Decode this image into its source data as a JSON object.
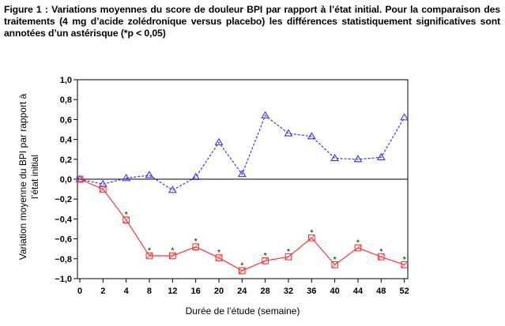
{
  "caption": "Figure 1 : Variations moyennes du score de douleur BPI par rapport à l’état initial. Pour la comparaison des traitements (4 mg d’acide zolédronique versus placebo) les différences statistiquement significatives sont annotées d’un astérisque (*p < 0,05)",
  "chart_data": {
    "type": "line",
    "xlabel": "Durée de l’étude (semaine)",
    "ylabel": "Variation moyenne du BPI par rapport à l’état initial",
    "categories": [
      "0",
      "2",
      "4",
      "8",
      "12",
      "16",
      "20",
      "24",
      "28",
      "32",
      "36",
      "40",
      "44",
      "48",
      "52"
    ],
    "ylim": [
      -1.0,
      1.0
    ],
    "ytick_labels": [
      "1,0",
      "0,8",
      "0,6",
      "0,4",
      "0,2",
      "0,0",
      "−0,2",
      "−0,4",
      "−0,6",
      "−0,8",
      "−1,0"
    ],
    "ytick_values": [
      1.0,
      0.8,
      0.6,
      0.4,
      0.2,
      0.0,
      -0.2,
      -0.4,
      -0.6,
      -0.8,
      -1.0
    ],
    "reference_line": 0.0,
    "series": [
      {
        "marker": "triangle",
        "color": "#3333ff",
        "line_style": "dashed",
        "values": [
          0.0,
          -0.05,
          0.01,
          0.04,
          -0.11,
          0.02,
          0.37,
          0.05,
          0.64,
          0.46,
          0.43,
          0.21,
          0.2,
          0.22,
          0.62
        ]
      },
      {
        "marker": "square",
        "color": "#ff3333",
        "line_style": "solid",
        "values": [
          0.0,
          -0.1,
          -0.41,
          -0.77,
          -0.77,
          -0.68,
          -0.79,
          -0.92,
          -0.82,
          -0.78,
          -0.59,
          -0.86,
          -0.69,
          -0.78,
          -0.86
        ]
      }
    ],
    "significance_marker": "*",
    "significance_color": "#008000",
    "significant_indices": [
      2,
      3,
      4,
      5,
      6,
      7,
      8,
      9,
      10,
      11,
      12,
      13,
      14
    ]
  }
}
